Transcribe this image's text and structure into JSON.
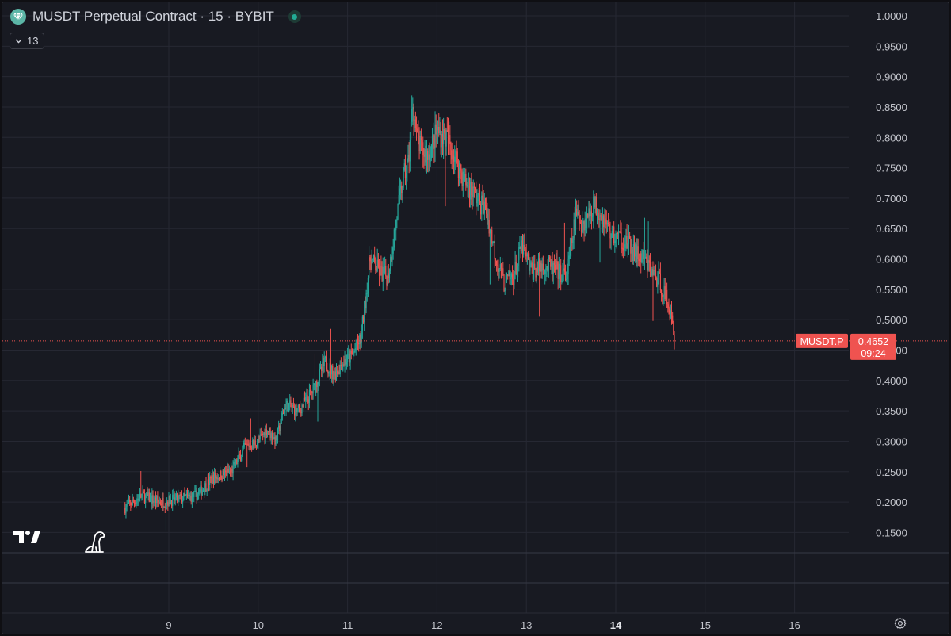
{
  "legend": {
    "title": "MUSDT Perpetual Contract · 15 · BYBIT"
  },
  "indicator_toggle": {
    "count": "13"
  },
  "price_label": {
    "symbol": "MUSDT.P",
    "price": "0.4652",
    "countdown": "09:24"
  },
  "colors": {
    "up": "#26a69a",
    "down": "#ef5350",
    "background": "#181a22",
    "grid": "#262833",
    "text": "#c3c5cc",
    "price_line": "#ef5350"
  },
  "icons": [
    "tradingview-logo-icon",
    "dinosaur-icon",
    "settings-gear-icon",
    "chevron-down-icon",
    "diamond-logo-icon"
  ],
  "chart_data": {
    "type": "candlestick",
    "series_name": "MUSDT Perpetual Contract · 15 · BYBIT",
    "interval": "15",
    "exchange": "BYBIT",
    "y_ticks": [
      "1.0000",
      "0.9500",
      "0.9000",
      "0.8500",
      "0.8000",
      "0.7500",
      "0.7000",
      "0.6500",
      "0.6000",
      "0.5500",
      "0.5000",
      "0.4500",
      "0.4000",
      "0.3500",
      "0.3000",
      "0.2500",
      "0.2000",
      "0.1500"
    ],
    "x_ticks": [
      "9",
      "10",
      "11",
      "12",
      "13",
      "14",
      "15",
      "16"
    ],
    "ylim": [
      0.15,
      1.0
    ],
    "xlim": [
      8.0,
      16.5
    ],
    "last_price": 0.4652,
    "grid": true,
    "price_path": [
      [
        8.5,
        0.19
      ],
      [
        8.7,
        0.21
      ],
      [
        8.9,
        0.2
      ],
      [
        9.1,
        0.205
      ],
      [
        9.3,
        0.21
      ],
      [
        9.5,
        0.24
      ],
      [
        9.7,
        0.25
      ],
      [
        9.85,
        0.29
      ],
      [
        10.0,
        0.3
      ],
      [
        10.1,
        0.32
      ],
      [
        10.2,
        0.3
      ],
      [
        10.3,
        0.36
      ],
      [
        10.45,
        0.35
      ],
      [
        10.6,
        0.38
      ],
      [
        10.75,
        0.43
      ],
      [
        10.85,
        0.41
      ],
      [
        10.95,
        0.43
      ],
      [
        11.05,
        0.44
      ],
      [
        11.15,
        0.47
      ],
      [
        11.25,
        0.6
      ],
      [
        11.35,
        0.58
      ],
      [
        11.45,
        0.57
      ],
      [
        11.55,
        0.67
      ],
      [
        11.62,
        0.73
      ],
      [
        11.68,
        0.76
      ],
      [
        11.73,
        0.86
      ],
      [
        11.77,
        0.8
      ],
      [
        11.82,
        0.78
      ],
      [
        11.9,
        0.77
      ],
      [
        12.0,
        0.81
      ],
      [
        12.1,
        0.8
      ],
      [
        12.2,
        0.77
      ],
      [
        12.3,
        0.73
      ],
      [
        12.4,
        0.71
      ],
      [
        12.55,
        0.68
      ],
      [
        12.65,
        0.61
      ],
      [
        12.75,
        0.56
      ],
      [
        12.85,
        0.57
      ],
      [
        12.95,
        0.62
      ],
      [
        13.05,
        0.58
      ],
      [
        13.2,
        0.59
      ],
      [
        13.35,
        0.58
      ],
      [
        13.45,
        0.57
      ],
      [
        13.55,
        0.67
      ],
      [
        13.65,
        0.66
      ],
      [
        13.75,
        0.69
      ],
      [
        13.82,
        0.68
      ],
      [
        13.95,
        0.64
      ],
      [
        14.1,
        0.63
      ],
      [
        14.2,
        0.61
      ],
      [
        14.3,
        0.6
      ],
      [
        14.4,
        0.58
      ],
      [
        14.5,
        0.56
      ],
      [
        14.6,
        0.52
      ],
      [
        14.66,
        0.4652
      ]
    ]
  }
}
